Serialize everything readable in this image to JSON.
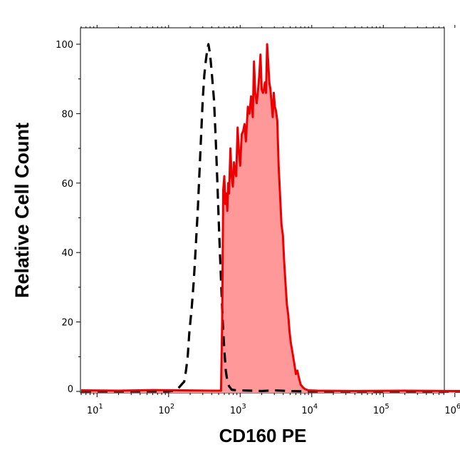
{
  "chart_data": {
    "type": "area",
    "xlabel": "CD160 PE",
    "ylabel": "Relative Cell Count",
    "xscale": "log",
    "xlim": [
      6,
      1200000
    ],
    "ylim": [
      0,
      105
    ],
    "x_ticks": [
      {
        "value": 10,
        "base": "10",
        "exp": "1"
      },
      {
        "value": 100,
        "base": "10",
        "exp": "2"
      },
      {
        "value": 1000,
        "base": "10",
        "exp": "3"
      },
      {
        "value": 10000,
        "base": "10",
        "exp": "4"
      },
      {
        "value": 100000,
        "base": "10",
        "exp": "5"
      },
      {
        "value": 1000000,
        "base": "10",
        "exp": "6"
      }
    ],
    "y_ticks": [
      "0",
      "20",
      "40",
      "60",
      "80",
      "100"
    ],
    "grid": false,
    "series": [
      {
        "style": "dashed",
        "color": "#000000",
        "points": [
          [
            6,
            0
          ],
          [
            100,
            0
          ],
          [
            125,
            0.3
          ],
          [
            135,
            0.8
          ],
          [
            145,
            1.5
          ],
          [
            155,
            2.2
          ],
          [
            165,
            2.8
          ],
          [
            175,
            6
          ],
          [
            185,
            10
          ],
          [
            195,
            17
          ],
          [
            210,
            24
          ],
          [
            225,
            32
          ],
          [
            240,
            42
          ],
          [
            255,
            52
          ],
          [
            270,
            63
          ],
          [
            285,
            74
          ],
          [
            300,
            84
          ],
          [
            315,
            91
          ],
          [
            330,
            95
          ],
          [
            345,
            98
          ],
          [
            360,
            100
          ],
          [
            380,
            97
          ],
          [
            400,
            92
          ],
          [
            430,
            84
          ],
          [
            455,
            73
          ],
          [
            480,
            60
          ],
          [
            510,
            45
          ],
          [
            540,
            32
          ],
          [
            570,
            20
          ],
          [
            600,
            12
          ],
          [
            630,
            6
          ],
          [
            660,
            3
          ],
          [
            700,
            1.5
          ],
          [
            760,
            0.5
          ],
          [
            900,
            0.3
          ],
          [
            1500,
            0.2
          ],
          [
            2000,
            0.1
          ],
          [
            3000,
            0.3
          ],
          [
            5000,
            0.1
          ],
          [
            8000,
            0
          ],
          [
            1200000,
            0
          ]
        ]
      },
      {
        "style": "solid-filled",
        "color": "#ee0000",
        "fill": "#ff9999",
        "points": [
          [
            6,
            0.3
          ],
          [
            20,
            0.2
          ],
          [
            60,
            0.4
          ],
          [
            150,
            0.3
          ],
          [
            400,
            0.2
          ],
          [
            540,
            0.2
          ],
          [
            560,
            20
          ],
          [
            580,
            58
          ],
          [
            600,
            62
          ],
          [
            620,
            54
          ],
          [
            640,
            57
          ],
          [
            660,
            52
          ],
          [
            680,
            60
          ],
          [
            700,
            57
          ],
          [
            730,
            70
          ],
          [
            760,
            62
          ],
          [
            790,
            59
          ],
          [
            820,
            66
          ],
          [
            850,
            63
          ],
          [
            880,
            62
          ],
          [
            920,
            76
          ],
          [
            960,
            69
          ],
          [
            1000,
            65
          ],
          [
            1050,
            74
          ],
          [
            1100,
            75
          ],
          [
            1150,
            77
          ],
          [
            1200,
            72
          ],
          [
            1280,
            82
          ],
          [
            1350,
            80
          ],
          [
            1420,
            85
          ],
          [
            1500,
            79
          ],
          [
            1560,
            95
          ],
          [
            1620,
            86
          ],
          [
            1700,
            83
          ],
          [
            1780,
            87
          ],
          [
            1850,
            91
          ],
          [
            1920,
            97
          ],
          [
            2000,
            87
          ],
          [
            2080,
            86
          ],
          [
            2150,
            87
          ],
          [
            2220,
            89
          ],
          [
            2300,
            86
          ],
          [
            2380,
            100
          ],
          [
            2460,
            95
          ],
          [
            2550,
            89
          ],
          [
            2650,
            87
          ],
          [
            2750,
            83
          ],
          [
            2850,
            79
          ],
          [
            2950,
            86
          ],
          [
            3050,
            82
          ],
          [
            3150,
            81
          ],
          [
            3300,
            78
          ],
          [
            3450,
            65
          ],
          [
            3600,
            57
          ],
          [
            3780,
            48
          ],
          [
            3950,
            45
          ],
          [
            4100,
            38
          ],
          [
            4300,
            31
          ],
          [
            4500,
            25
          ],
          [
            4700,
            22
          ],
          [
            4900,
            17
          ],
          [
            5100,
            14
          ],
          [
            5400,
            11
          ],
          [
            5700,
            8
          ],
          [
            6000,
            5
          ],
          [
            6300,
            6
          ],
          [
            6600,
            4
          ],
          [
            7000,
            2
          ],
          [
            7500,
            1.2
          ],
          [
            8000,
            0.7
          ],
          [
            9000,
            0.3
          ],
          [
            12000,
            0.2
          ],
          [
            40000,
            0.1
          ],
          [
            200000,
            0.2
          ],
          [
            1000000,
            0.1
          ],
          [
            1200000,
            0.1
          ]
        ]
      }
    ]
  }
}
